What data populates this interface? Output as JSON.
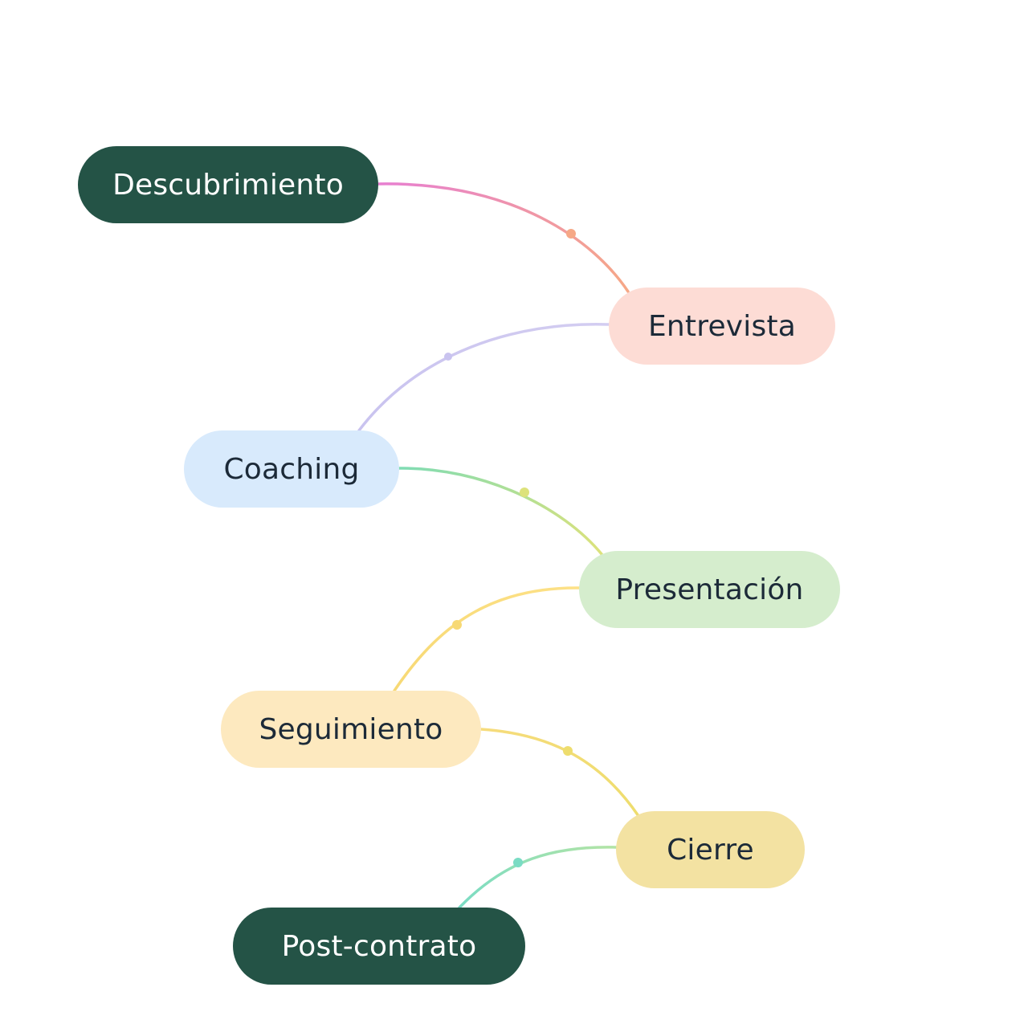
{
  "diagram": {
    "nodes": [
      {
        "id": "descubrimiento",
        "label": "Descubrimiento",
        "fill": "#245346",
        "text_color": "#ffffff"
      },
      {
        "id": "entrevista",
        "label": "Entrevista",
        "fill": "#fddcd5",
        "text_color": "#1c2a38"
      },
      {
        "id": "coaching",
        "label": "Coaching",
        "fill": "#d8eafc",
        "text_color": "#1c2a38"
      },
      {
        "id": "presentacion",
        "label": "Presentación",
        "fill": "#d5edcd",
        "text_color": "#1c2a38"
      },
      {
        "id": "seguimiento",
        "label": "Seguimiento",
        "fill": "#fde9bf",
        "text_color": "#1c2a38"
      },
      {
        "id": "cierre",
        "label": "Cierre",
        "fill": "#f3e2a2",
        "text_color": "#1c2a38"
      },
      {
        "id": "postcontrato",
        "label": "Post-contrato",
        "fill": "#245346",
        "text_color": "#ffffff"
      }
    ],
    "connectors": [
      {
        "from": "descubrimiento",
        "to": "entrevista",
        "color_start": "#e77fd1",
        "color_end": "#f6a886"
      },
      {
        "from": "entrevista",
        "to": "coaching",
        "color_start": "#d3cdf1",
        "color_end": "#c9c3ef"
      },
      {
        "from": "coaching",
        "to": "presentacion",
        "color_start": "#7fdcb4",
        "color_end": "#dde27b"
      },
      {
        "from": "presentacion",
        "to": "seguimiento",
        "color_start": "#fde187",
        "color_end": "#f7d975"
      },
      {
        "from": "seguimiento",
        "to": "cierre",
        "color_start": "#f6dc7c",
        "color_end": "#eedd6e"
      },
      {
        "from": "cierre",
        "to": "postcontrato",
        "color_start": "#b3e4a5",
        "color_end": "#7adcc4"
      }
    ]
  }
}
